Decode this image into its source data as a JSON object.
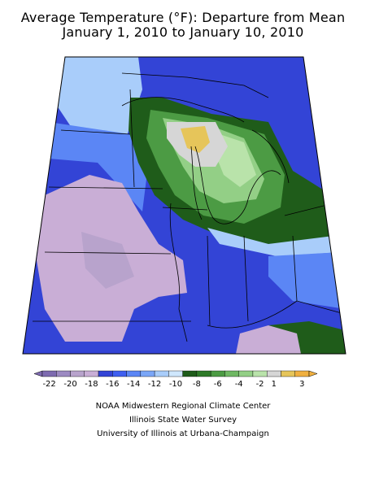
{
  "title": {
    "line1": "Average Temperature (°F): Departure from Mean",
    "line2": "January 1, 2010 to January 10, 2010"
  },
  "legend": {
    "ticks": [
      "-22",
      "-20",
      "-18",
      "-16",
      "-14",
      "-12",
      "-10",
      "-8",
      "-6",
      "-4",
      "-2",
      "1",
      "3"
    ],
    "colors": [
      "#7e6bb0",
      "#9c8ac2",
      "#b8a3cc",
      "#c9aed6",
      "#3344d6",
      "#3f5ff0",
      "#5b86f5",
      "#7aa6f7",
      "#a9cdfa",
      "#cfe7fc",
      "#1f5c1a",
      "#2e7a28",
      "#4c9b44",
      "#6fb863",
      "#93cf86",
      "#b9e3aa",
      "#d6d6d6",
      "#e6c55a",
      "#f0b040"
    ]
  },
  "map_colors": {
    "deep_blue": "#3344d6",
    "blue": "#3f5ff0",
    "mid_blue": "#5b86f5",
    "light_blue": "#a9cdfa",
    "lavender": "#c9aed6",
    "lavender_dark": "#b8a3cc",
    "dark_green": "#1f5c1a",
    "green": "#4c9b44",
    "light_green": "#93cf86",
    "pale_green": "#b9e3aa",
    "gray": "#d6d6d6",
    "orange": "#e6c55a"
  },
  "credits": {
    "line1": "NOAA Midwestern Regional Climate Center",
    "line2": "Illinois State Water Survey",
    "line3": "University of Illinois at Urbana-Champaign"
  }
}
